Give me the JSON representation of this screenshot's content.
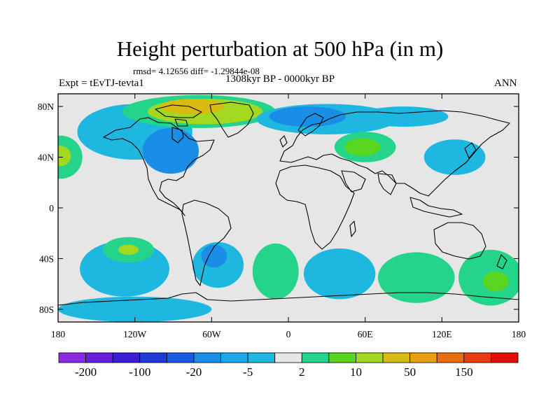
{
  "figure": {
    "title": "Height perturbation at 500 hPa (in m)",
    "stats": "rmsd= 4.12656 diff= -1.29844e-08",
    "period": "1308kyr BP - 0000kyr BP",
    "experiment": "Expt = tEvTJ-tevta1",
    "season": "ANN"
  },
  "map_data": {
    "type": "filled-contour-map",
    "projection": "cylindrical-equidistant",
    "lon_range": [
      -180,
      180
    ],
    "lat_range": [
      -90,
      90
    ],
    "lat_ticks": [
      {
        "value": 80,
        "label": "80N"
      },
      {
        "value": 40,
        "label": "40N"
      },
      {
        "value": 0,
        "label": "0"
      },
      {
        "value": -40,
        "label": "40S"
      },
      {
        "value": -80,
        "label": "80S"
      }
    ],
    "lon_ticks": [
      {
        "value": -180,
        "label": "180"
      },
      {
        "value": -120,
        "label": "120W"
      },
      {
        "value": -60,
        "label": "60W"
      },
      {
        "value": 0,
        "label": "0"
      },
      {
        "value": 60,
        "label": "60E"
      },
      {
        "value": 120,
        "label": "120E"
      },
      {
        "value": 180,
        "label": "180"
      }
    ],
    "background_color": "#e6e6e6",
    "regions": [
      {
        "name": "north-pacific-positive-low",
        "level": "2",
        "color": "#24d48a",
        "lon": -178,
        "lat": 40,
        "rx": 17,
        "ry": 17
      },
      {
        "name": "north-pacific-positive-mid",
        "level": "10",
        "color": "#a2d920",
        "lon": -178,
        "lat": 41,
        "rx": 8,
        "ry": 8
      },
      {
        "name": "northeast-pacific-negative",
        "level": "-5",
        "color": "#1eb7e0",
        "lon": -120,
        "lat": 60,
        "rx": 45,
        "ry": 22
      },
      {
        "name": "north-america-negative",
        "level": "-20",
        "color": "#1a8ee6",
        "lon": -92,
        "lat": 45,
        "rx": 22,
        "ry": 18
      },
      {
        "name": "greenland-positive-low",
        "level": "2",
        "color": "#24d48a",
        "lon": -70,
        "lat": 76,
        "rx": 60,
        "ry": 13
      },
      {
        "name": "greenland-positive-mid",
        "level": "10",
        "color": "#a2d920",
        "lon": -65,
        "lat": 76,
        "rx": 45,
        "ry": 10
      },
      {
        "name": "greenland-positive-high",
        "level": "50",
        "color": "#d8ba10",
        "lon": -75,
        "lat": 80,
        "rx": 25,
        "ry": 6
      },
      {
        "name": "north-atlantic-europe-negative",
        "level": "-5",
        "color": "#1eb7e0",
        "lon": 30,
        "lat": 70,
        "rx": 55,
        "ry": 12
      },
      {
        "name": "europe-negative-core",
        "level": "-20",
        "color": "#1a8ee6",
        "lon": 15,
        "lat": 72,
        "rx": 30,
        "ry": 8
      },
      {
        "name": "russia-negative",
        "level": "-5",
        "color": "#1eb7e0",
        "lon": 90,
        "lat": 72,
        "rx": 35,
        "ry": 8
      },
      {
        "name": "central-asia-positive-low",
        "level": "2",
        "color": "#24d48a",
        "lon": 60,
        "lat": 48,
        "rx": 24,
        "ry": 12
      },
      {
        "name": "central-asia-positive-mid",
        "level": "10",
        "color": "#5ad520",
        "lon": 58,
        "lat": 48,
        "rx": 14,
        "ry": 7
      },
      {
        "name": "east-asia-negative",
        "level": "-5",
        "color": "#1eb7e0",
        "lon": 130,
        "lat": 40,
        "rx": 24,
        "ry": 14
      },
      {
        "name": "south-pacific-negative",
        "level": "-5",
        "color": "#1eb7e0",
        "lon": -128,
        "lat": -48,
        "rx": 35,
        "ry": 22
      },
      {
        "name": "south-pacific-positive-low",
        "level": "2",
        "color": "#24d48a",
        "lon": -125,
        "lat": -33,
        "rx": 20,
        "ry": 10
      },
      {
        "name": "south-pacific-positive-mid",
        "level": "10",
        "color": "#a2d920",
        "lon": -125,
        "lat": -33,
        "rx": 8,
        "ry": 4
      },
      {
        "name": "south-america-negative",
        "level": "-5",
        "color": "#1eb7e0",
        "lon": -55,
        "lat": -45,
        "rx": 20,
        "ry": 18
      },
      {
        "name": "southwest-atlantic-negative-core",
        "level": "-20",
        "color": "#1a8ee6",
        "lon": -58,
        "lat": -38,
        "rx": 10,
        "ry": 9
      },
      {
        "name": "south-atlantic-positive",
        "level": "2",
        "color": "#24d48a",
        "lon": -10,
        "lat": -50,
        "rx": 18,
        "ry": 22
      },
      {
        "name": "southern-indian-negative",
        "level": "-5",
        "color": "#1eb7e0",
        "lon": 40,
        "lat": -52,
        "rx": 28,
        "ry": 20
      },
      {
        "name": "southeast-indian-positive",
        "level": "2",
        "color": "#24d48a",
        "lon": 100,
        "lat": -55,
        "rx": 30,
        "ry": 20
      },
      {
        "name": "southwest-pacific-positive",
        "level": "2",
        "color": "#24d48a",
        "lon": 158,
        "lat": -55,
        "rx": 25,
        "ry": 22
      },
      {
        "name": "southwest-pacific-positive-mid",
        "level": "10",
        "color": "#5ad520",
        "lon": 162,
        "lat": -58,
        "rx": 10,
        "ry": 8
      },
      {
        "name": "antarctic-negative",
        "level": "-5",
        "color": "#1eb7e0",
        "lon": -120,
        "lat": -80,
        "rx": 60,
        "ry": 10
      }
    ]
  },
  "colorbar": {
    "colors": [
      "#8a2be2",
      "#6a1fe0",
      "#3b1fd8",
      "#1f3ad8",
      "#1a5be6",
      "#1a8ee6",
      "#1ea7ea",
      "#1eb7e0",
      "#e6e6e6",
      "#24d48a",
      "#5ad520",
      "#a2d920",
      "#d8ba10",
      "#e8a010",
      "#e86c10",
      "#e83c10",
      "#e01008"
    ],
    "labels": [
      "-200",
      "-100",
      "-20",
      "-5",
      "2",
      "10",
      "50",
      "150"
    ]
  }
}
